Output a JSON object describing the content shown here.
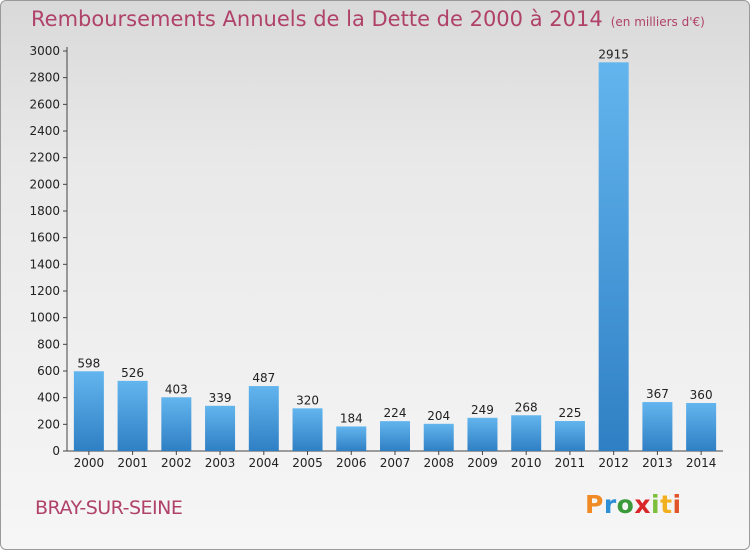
{
  "title": "Remboursements Annuels de la Dette de 2000 à 2014",
  "unit": "(en milliers d'€)",
  "commune": "BRAY-SUR-SEINE",
  "logo": {
    "letters": [
      "P",
      "r",
      "o",
      "x",
      "i",
      "t",
      "i"
    ],
    "colors": [
      "#f08a24",
      "#2d8fd6",
      "#3a9a3a",
      "#d9262a",
      "#7cbf3a",
      "#f2b01e",
      "#e2542a"
    ]
  },
  "colors": {
    "bar_light": "#63b5ee",
    "bar_dark": "#2f7fc4",
    "title": "#b0426a"
  },
  "chart_data": {
    "type": "bar",
    "categories": [
      "2000",
      "2001",
      "2002",
      "2003",
      "2004",
      "2005",
      "2006",
      "2007",
      "2008",
      "2009",
      "2010",
      "2011",
      "2012",
      "2013",
      "2014"
    ],
    "values": [
      598,
      526,
      403,
      339,
      487,
      320,
      184,
      224,
      204,
      249,
      268,
      225,
      2915,
      367,
      360
    ],
    "ylim": [
      0,
      3000
    ],
    "yticks": [
      0,
      200,
      400,
      600,
      800,
      1000,
      1200,
      1400,
      1600,
      1800,
      2000,
      2200,
      2400,
      2600,
      2800,
      3000
    ],
    "grid": false,
    "legend": "none"
  }
}
